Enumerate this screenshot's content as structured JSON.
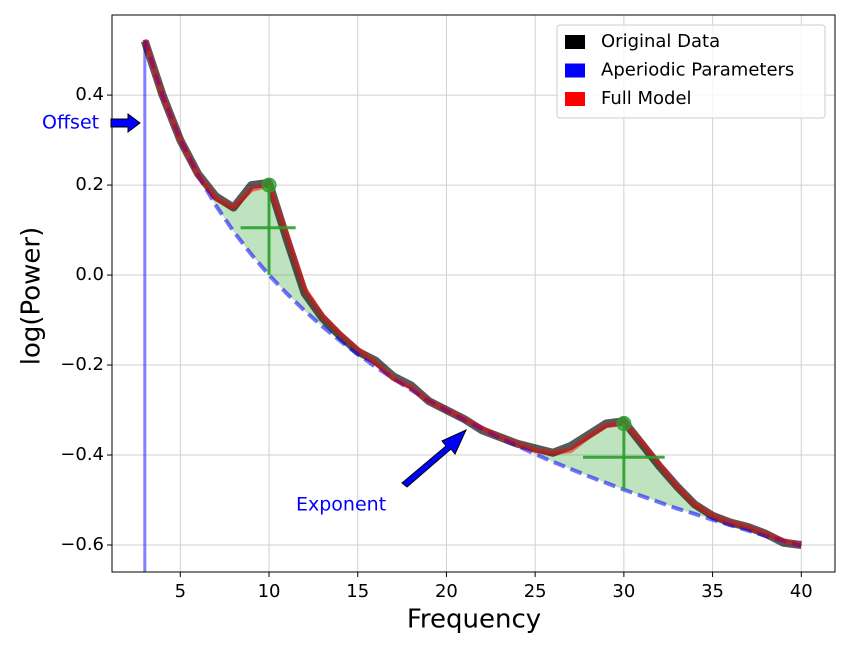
{
  "chart_data": {
    "type": "line",
    "xlabel": "Frequency",
    "ylabel": "log(Power)",
    "x": [
      3,
      4,
      5,
      6,
      7,
      8,
      9,
      10,
      11,
      12,
      13,
      14,
      15,
      16,
      17,
      18,
      19,
      20,
      21,
      22,
      23,
      24,
      25,
      26,
      27,
      28,
      29,
      30,
      31,
      32,
      33,
      34,
      35,
      36,
      37,
      38,
      39,
      40
    ],
    "series": [
      {
        "name": "Original Data",
        "color": "#000000",
        "values": [
          0.52,
          0.4,
          0.3,
          0.225,
          0.175,
          0.15,
          0.2,
          0.205,
          0.08,
          -0.04,
          -0.095,
          -0.135,
          -0.17,
          -0.19,
          -0.225,
          -0.245,
          -0.28,
          -0.3,
          -0.32,
          -0.345,
          -0.36,
          -0.375,
          -0.385,
          -0.395,
          -0.38,
          -0.355,
          -0.33,
          -0.325,
          -0.375,
          -0.425,
          -0.47,
          -0.51,
          -0.535,
          -0.55,
          -0.56,
          -0.575,
          -0.595,
          -0.6
        ]
      },
      {
        "name": "Aperiodic Parameters",
        "color": "#0000ff",
        "values": [
          0.523,
          0.398,
          0.301,
          0.222,
          0.155,
          0.097,
          0.046,
          0,
          -0.041,
          -0.079,
          -0.114,
          -0.146,
          -0.176,
          -0.204,
          -0.23,
          -0.255,
          -0.279,
          -0.301,
          -0.322,
          -0.342,
          -0.362,
          -0.38,
          -0.398,
          -0.415,
          -0.431,
          -0.447,
          -0.462,
          -0.477,
          -0.491,
          -0.505,
          -0.519,
          -0.531,
          -0.544,
          -0.556,
          -0.568,
          -0.58,
          -0.591,
          -0.602
        ]
      },
      {
        "name": "Full Model",
        "color": "#ff0000",
        "values": [
          0.523,
          0.398,
          0.301,
          0.222,
          0.17,
          0.15,
          0.19,
          0.2,
          0.09,
          -0.03,
          -0.09,
          -0.13,
          -0.165,
          -0.195,
          -0.23,
          -0.25,
          -0.28,
          -0.3,
          -0.32,
          -0.34,
          -0.36,
          -0.375,
          -0.39,
          -0.395,
          -0.39,
          -0.36,
          -0.335,
          -0.33,
          -0.37,
          -0.42,
          -0.47,
          -0.51,
          -0.535,
          -0.55,
          -0.56,
          -0.575,
          -0.59,
          -0.6
        ]
      }
    ],
    "peaks": {
      "x": [
        10,
        30
      ],
      "y": [
        0.2,
        -0.33
      ],
      "half_height": [
        0.105,
        -0.405
      ],
      "width_lo": [
        8.4,
        27.7
      ],
      "width_hi": [
        11.5,
        32.3
      ]
    },
    "annotations": [
      "Offset",
      "Exponent"
    ],
    "xlim": [
      1.15,
      41.9
    ],
    "ylim": [
      -0.66,
      0.578
    ],
    "xticks": [
      5,
      10,
      15,
      20,
      25,
      30,
      35,
      40
    ],
    "yticks": [
      {
        "value": -0.6,
        "label": "−0.6"
      },
      {
        "value": -0.4,
        "label": "−0.4"
      },
      {
        "value": -0.2,
        "label": "−0.2"
      },
      {
        "value": 0,
        "label": "0.0"
      },
      0.2,
      0.4
    ],
    "grid": true,
    "legend": "upper right",
    "peak_color": "#2ca02c"
  }
}
